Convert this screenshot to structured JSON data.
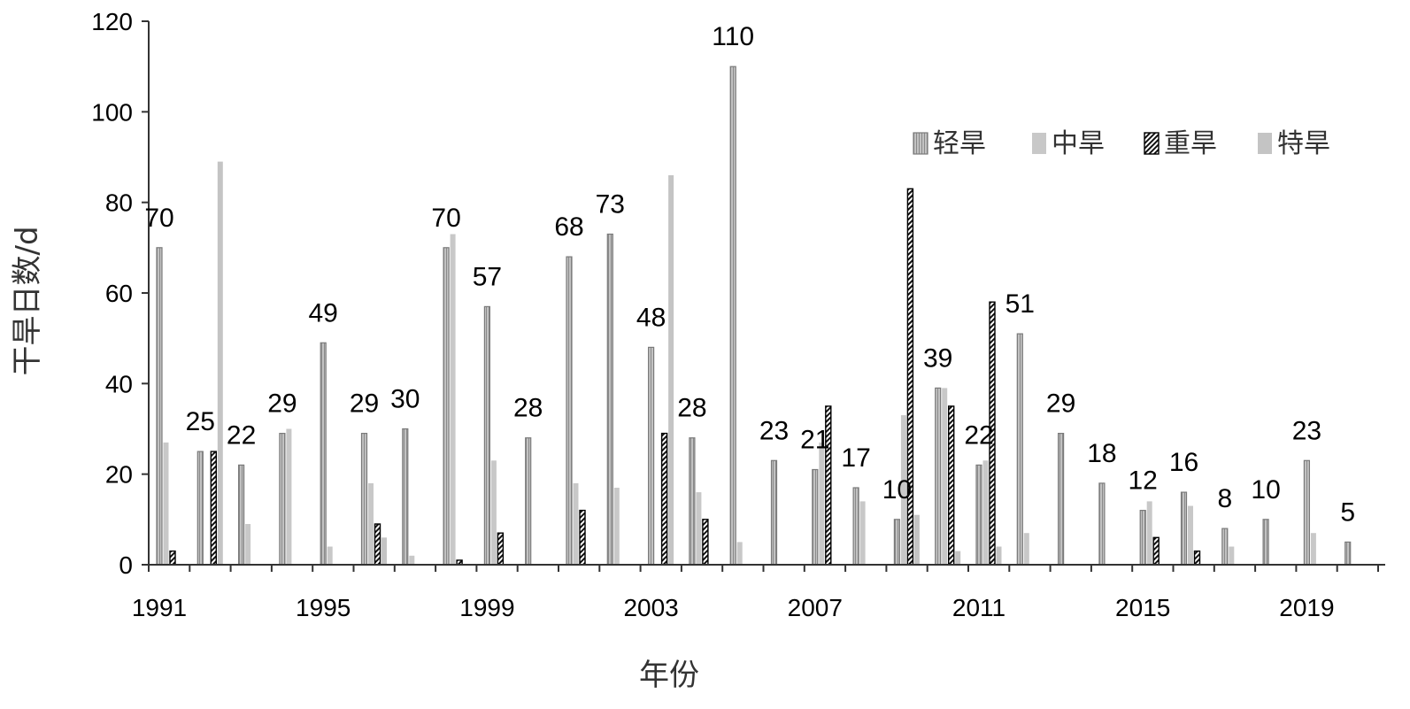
{
  "chart_data": {
    "type": "bar",
    "xlabel": "年份",
    "ylabel": "干旱日数/d",
    "ylim": [
      0,
      120
    ],
    "yticks": [
      "0",
      "20",
      "40",
      "60",
      "80",
      "100",
      "120"
    ],
    "xtick_labels": [
      "1991",
      "1995",
      "1999",
      "2003",
      "2007",
      "2011",
      "2015",
      "2019"
    ],
    "legend_position": "top-right",
    "categories": [
      "1991",
      "1992",
      "1993",
      "1994",
      "1995",
      "1996",
      "1997",
      "1998",
      "1999",
      "2000",
      "2001",
      "2002",
      "2003",
      "2004",
      "2005",
      "2006",
      "2007",
      "2008",
      "2009",
      "2010",
      "2011",
      "2012",
      "2013",
      "2014",
      "2015",
      "2016",
      "2017",
      "2018",
      "2019",
      "2020"
    ],
    "series": [
      {
        "name": "轻旱",
        "values": [
          70,
          25,
          22,
          29,
          49,
          29,
          30,
          70,
          57,
          28,
          68,
          73,
          48,
          28,
          110,
          23,
          21,
          17,
          10,
          39,
          22,
          51,
          29,
          18,
          12,
          16,
          8,
          10,
          23,
          5
        ]
      },
      {
        "name": "中旱",
        "values": [
          27,
          0,
          9,
          30,
          4,
          18,
          2,
          73,
          23,
          0,
          18,
          17,
          0,
          16,
          5,
          0,
          27,
          14,
          33,
          39,
          23,
          7,
          0,
          0,
          14,
          13,
          4,
          0,
          7,
          0
        ]
      },
      {
        "name": "重旱",
        "values": [
          3,
          25,
          0,
          0,
          0,
          9,
          0,
          1,
          7,
          0,
          12,
          0,
          29,
          10,
          0,
          0,
          35,
          0,
          83,
          35,
          58,
          0,
          0,
          0,
          6,
          3,
          0,
          0,
          0,
          0
        ]
      },
      {
        "name": "特旱",
        "values": [
          0,
          89,
          0,
          0,
          0,
          6,
          0,
          0,
          0,
          0,
          0,
          0,
          86,
          0,
          0,
          0,
          0,
          0,
          11,
          3,
          4,
          0,
          0,
          0,
          0,
          0,
          0,
          0,
          0,
          0
        ]
      }
    ],
    "data_labels": [
      "70",
      "25",
      "22",
      "29",
      "49",
      "29",
      "30",
      "70",
      "57",
      "28",
      "68",
      "73",
      "48",
      "28",
      "110",
      "23",
      "21",
      "17",
      "10",
      "39",
      "22",
      "51",
      "29",
      "18",
      "12",
      "16",
      "8",
      "10",
      "23",
      "5"
    ],
    "colors": {
      "light": "#b8b8b8",
      "medium": "#c8c8c8",
      "heavy": "#111111",
      "extreme": "#c4c4c4",
      "axis": "#333333"
    }
  }
}
